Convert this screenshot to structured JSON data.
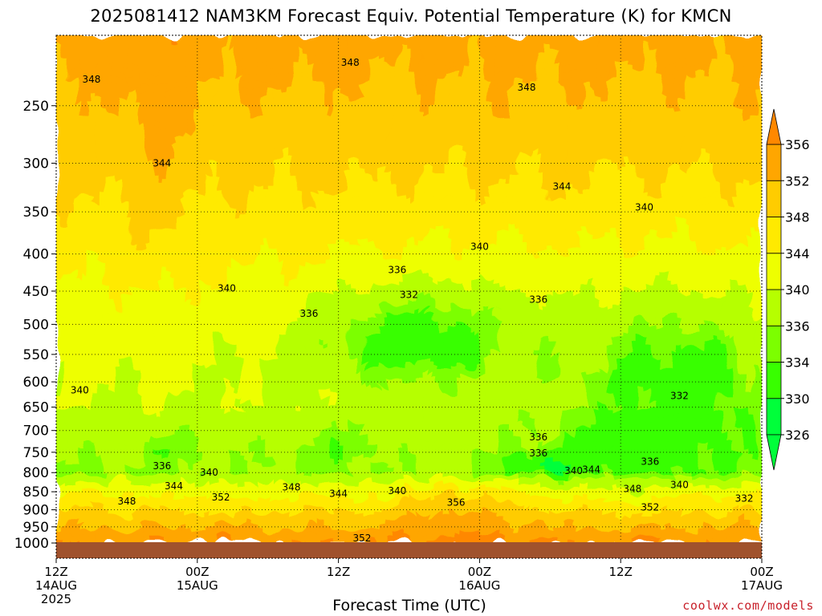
{
  "page": {
    "title": "2025081412 NAM3KM Forecast Equiv. Potential Temperature (K) for KMCN",
    "credit": "coolwx.com/models"
  },
  "chart_data": {
    "type": "heatmap",
    "title": "2025081412 NAM3KM Forecast Equiv. Potential Temperature (K) for KMCN",
    "xlabel": "Forecast Time (UTC)",
    "ylabel": "",
    "x_unit": "hours from 2025-08-14 12Z",
    "x_range": [
      0,
      60
    ],
    "x_ticks": [
      {
        "hour": 0,
        "lines": [
          "12Z",
          "14AUG",
          "2025"
        ]
      },
      {
        "hour": 12,
        "lines": [
          "00Z",
          "15AUG"
        ]
      },
      {
        "hour": 24,
        "lines": [
          "12Z"
        ]
      },
      {
        "hour": 36,
        "lines": [
          "00Z",
          "16AUG"
        ]
      },
      {
        "hour": 48,
        "lines": [
          "12Z"
        ]
      },
      {
        "hour": 60,
        "lines": [
          "00Z",
          "17AUG"
        ]
      }
    ],
    "y_scale": "log",
    "y_unit": "hPa",
    "y_range": [
      1000,
      200
    ],
    "y_ticks": [
      250,
      300,
      350,
      400,
      450,
      500,
      550,
      600,
      650,
      700,
      750,
      800,
      850,
      900,
      950,
      1000
    ],
    "surface_pressure_hPa": 1000,
    "grid": true,
    "colorbar": {
      "placement": "right",
      "levels": [
        326,
        330,
        334,
        336,
        340,
        344,
        348,
        352,
        356
      ],
      "labels": [
        "326",
        "330",
        "334",
        "336",
        "340",
        "344",
        "348",
        "352",
        "356"
      ],
      "colors": [
        "#00ff3a",
        "#38ff00",
        "#7cff00",
        "#b6ff00",
        "#eeff00",
        "#ffea00",
        "#ffcc00",
        "#ffa600",
        "#ff8800"
      ],
      "ground_color": "#a0522d"
    },
    "contour_labels": [
      {
        "text": "348",
        "hour": 3.0,
        "p": 230
      },
      {
        "text": "348",
        "hour": 25.0,
        "p": 218
      },
      {
        "text": "348",
        "hour": 40.0,
        "p": 236
      },
      {
        "text": "344",
        "hour": 9.0,
        "p": 300
      },
      {
        "text": "344",
        "hour": 43.0,
        "p": 323
      },
      {
        "text": "340",
        "hour": 50.0,
        "p": 345
      },
      {
        "text": "340",
        "hour": 36.0,
        "p": 391
      },
      {
        "text": "340",
        "hour": 14.5,
        "p": 446
      },
      {
        "text": "336",
        "hour": 29.0,
        "p": 421
      },
      {
        "text": "336",
        "hour": 21.5,
        "p": 483
      },
      {
        "text": "336",
        "hour": 41.0,
        "p": 462
      },
      {
        "text": "332",
        "hour": 30.0,
        "p": 455
      },
      {
        "text": "340",
        "hour": 2.0,
        "p": 616
      },
      {
        "text": "332",
        "hour": 53.0,
        "p": 627
      },
      {
        "text": "336",
        "hour": 41.0,
        "p": 715
      },
      {
        "text": "336",
        "hour": 41.0,
        "p": 752
      },
      {
        "text": "336",
        "hour": 9.0,
        "p": 783
      },
      {
        "text": "340",
        "hour": 13.0,
        "p": 800
      },
      {
        "text": "340",
        "hour": 44.0,
        "p": 795
      },
      {
        "text": "344",
        "hour": 45.5,
        "p": 792
      },
      {
        "text": "336",
        "hour": 50.5,
        "p": 773
      },
      {
        "text": "344",
        "hour": 10.0,
        "p": 835
      },
      {
        "text": "348",
        "hour": 20.0,
        "p": 838
      },
      {
        "text": "344",
        "hour": 24.0,
        "p": 855
      },
      {
        "text": "340",
        "hour": 29.0,
        "p": 848
      },
      {
        "text": "348",
        "hour": 49.0,
        "p": 842
      },
      {
        "text": "340",
        "hour": 53.0,
        "p": 832
      },
      {
        "text": "348",
        "hour": 6.0,
        "p": 876
      },
      {
        "text": "352",
        "hour": 14.0,
        "p": 865
      },
      {
        "text": "356",
        "hour": 34.0,
        "p": 880
      },
      {
        "text": "352",
        "hour": 50.5,
        "p": 893
      },
      {
        "text": "332",
        "hour": 58.5,
        "p": 868
      },
      {
        "text": "352",
        "hour": 26.0,
        "p": 985
      }
    ]
  }
}
